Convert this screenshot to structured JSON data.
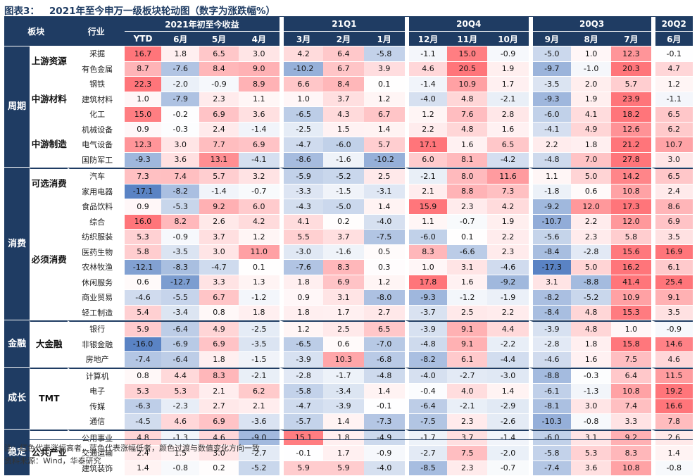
{
  "title": {
    "figure_label": "图表3：",
    "text": "2021年至今申万一级板块轮动图（数字为涨跌幅%）"
  },
  "headers": {
    "sector": "板块",
    "industry": "行业",
    "groups": [
      "2021年初至今收益",
      "21Q1",
      "20Q4",
      "20Q3",
      "20Q2"
    ],
    "months": [
      "YTD",
      "6月",
      "5月",
      "4月",
      "3月",
      "2月",
      "1月",
      "12月",
      "11月",
      "10月",
      "9月",
      "8月",
      "7月",
      "6月"
    ]
  },
  "colors": {
    "header_bg": "#1f3c63",
    "positive_strong": "#f4757a",
    "negative_strong": "#5a83c4",
    "neutral": "#ffffff"
  },
  "sections": [
    {
      "label": "周期",
      "subgroups": [
        {
          "label": "上游资源",
          "rows": [
            {
              "industry": "采掘",
              "values": [
                16.7,
                1.8,
                6.5,
                3.0,
                4.2,
                6.4,
                -5.8,
                -1.1,
                15.0,
                -0.9,
                -5.0,
                1.0,
                12.3,
                -0.1
              ]
            },
            {
              "industry": "有色金属",
              "values": [
                8.7,
                -7.6,
                8.4,
                9.0,
                -10.2,
                6.7,
                3.9,
                4.6,
                20.5,
                1.9,
                -9.7,
                -1.0,
                20.3,
                4.7
              ]
            }
          ]
        },
        {
          "label": "中游材料",
          "rows": [
            {
              "industry": "钢铁",
              "values": [
                22.3,
                -2.0,
                -0.9,
                8.9,
                6.6,
                8.4,
                0.1,
                -1.4,
                10.9,
                1.7,
                -3.5,
                2.0,
                5.7,
                1.2
              ]
            },
            {
              "industry": "建筑材料",
              "values": [
                1.0,
                -7.9,
                2.3,
                1.1,
                1.0,
                3.7,
                1.2,
                -4.0,
                4.8,
                -2.1,
                -9.3,
                1.9,
                23.9,
                -1.1
              ]
            },
            {
              "industry": "化工",
              "values": [
                15.0,
                -0.2,
                6.9,
                3.6,
                -6.5,
                4.3,
                6.7,
                1.2,
                7.6,
                2.8,
                -6.0,
                4.1,
                18.2,
                6.5
              ]
            }
          ]
        },
        {
          "label": "中游制造",
          "rows": [
            {
              "industry": "机械设备",
              "values": [
                0.9,
                -0.3,
                2.4,
                -1.4,
                -2.5,
                1.5,
                1.4,
                2.2,
                4.8,
                1.6,
                -4.1,
                4.9,
                12.6,
                6.2
              ]
            },
            {
              "industry": "电气设备",
              "values": [
                12.3,
                3.0,
                7.7,
                6.9,
                -4.7,
                -6.0,
                5.7,
                17.1,
                1.6,
                6.5,
                2.2,
                1.8,
                21.2,
                10.7
              ]
            },
            {
              "industry": "国防军工",
              "values": [
                -9.3,
                3.6,
                13.1,
                -4.1,
                -8.6,
                -1.6,
                -10.2,
                6.0,
                8.1,
                -4.2,
                -4.8,
                7.0,
                27.8,
                3.0
              ]
            }
          ]
        }
      ]
    },
    {
      "label": "消费",
      "subgroups": [
        {
          "label": "可选消费",
          "rows": [
            {
              "industry": "汽车",
              "values": [
                7.3,
                7.4,
                5.7,
                3.2,
                -5.9,
                -5.2,
                2.5,
                -2.1,
                8.0,
                11.6,
                1.1,
                5.0,
                14.2,
                6.5
              ]
            },
            {
              "industry": "家用电器",
              "values": [
                -17.1,
                -8.2,
                -1.4,
                -0.7,
                -3.3,
                -1.5,
                -3.1,
                2.1,
                8.8,
                7.3,
                -1.8,
                0.6,
                10.8,
                2.4
              ]
            }
          ]
        },
        {
          "label": "必须消费",
          "rows": [
            {
              "industry": "食品饮料",
              "values": [
                0.9,
                -5.3,
                9.2,
                6.0,
                -4.3,
                -5.0,
                1.4,
                15.9,
                2.3,
                4.2,
                -9.2,
                12.0,
                17.3,
                8.6
              ]
            },
            {
              "industry": "综合",
              "values": [
                16.0,
                8.2,
                2.6,
                4.2,
                4.1,
                0.2,
                -4.0,
                1.1,
                -0.7,
                1.9,
                -10.7,
                2.2,
                12.0,
                6.9
              ]
            },
            {
              "industry": "纺织服装",
              "values": [
                5.3,
                -0.9,
                3.7,
                1.2,
                5.5,
                3.7,
                -7.5,
                -6.0,
                0.1,
                2.2,
                -5.6,
                2.3,
                5.8,
                3.5
              ]
            },
            {
              "industry": "医药生物",
              "values": [
                5.8,
                -3.5,
                3.0,
                11.0,
                -3.0,
                -1.6,
                0.5,
                8.3,
                -6.6,
                2.3,
                -8.4,
                -2.8,
                15.6,
                16.9
              ]
            },
            {
              "industry": "农林牧渔",
              "values": [
                -12.1,
                -8.3,
                -4.7,
                0.1,
                -7.6,
                8.3,
                0.3,
                1.0,
                3.1,
                -4.6,
                -17.3,
                5.0,
                16.2,
                6.1
              ]
            },
            {
              "industry": "休闲服务",
              "values": [
                0.6,
                -12.7,
                3.3,
                1.3,
                1.8,
                6.9,
                1.2,
                17.8,
                1.6,
                -9.2,
                3.1,
                -8.8,
                41.4,
                25.4
              ]
            },
            {
              "industry": "商业贸易",
              "values": [
                -4.6,
                -5.5,
                6.7,
                -1.2,
                0.9,
                3.1,
                -8.0,
                -9.3,
                -1.2,
                -1.9,
                -8.2,
                -5.2,
                10.9,
                9.1
              ]
            },
            {
              "industry": "轻工制造",
              "values": [
                5.4,
                -3.4,
                0.8,
                1.8,
                1.8,
                1.7,
                2.7,
                -3.7,
                2.5,
                2.2,
                -8.4,
                4.8,
                15.3,
                3.5
              ]
            }
          ]
        }
      ]
    },
    {
      "label": "金融",
      "subgroups": [
        {
          "label": "大金融",
          "rows": [
            {
              "industry": "银行",
              "values": [
                5.9,
                -6.4,
                4.9,
                -2.5,
                1.2,
                2.5,
                6.5,
                -3.9,
                9.1,
                4.4,
                -3.9,
                4.8,
                1.0,
                -0.9
              ]
            },
            {
              "industry": "非银金融",
              "values": [
                -16.0,
                -6.9,
                6.9,
                -3.5,
                -6.5,
                0.6,
                -7.0,
                -4.8,
                9.1,
                -2.2,
                -2.8,
                1.8,
                15.8,
                14.6
              ]
            },
            {
              "industry": "房地产",
              "values": [
                -7.4,
                -6.4,
                1.8,
                -1.5,
                -3.9,
                10.3,
                -6.8,
                -8.2,
                6.1,
                -4.4,
                -4.6,
                1.6,
                7.5,
                4.6
              ]
            }
          ]
        }
      ]
    },
    {
      "label": "成长",
      "subgroups": [
        {
          "label": "TMT",
          "rows": [
            {
              "industry": "计算机",
              "values": [
                0.8,
                4.4,
                8.3,
                -2.1,
                -2.8,
                -1.7,
                -4.8,
                -4.0,
                -2.7,
                -3.0,
                -8.8,
                -0.3,
                6.4,
                11.5
              ]
            },
            {
              "industry": "电子",
              "values": [
                5.3,
                5.3,
                2.1,
                6.2,
                -5.8,
                -3.4,
                1.4,
                -0.4,
                4.0,
                1.4,
                -6.1,
                -1.3,
                10.8,
                19.2
              ]
            },
            {
              "industry": "传媒",
              "values": [
                -6.3,
                -2.3,
                2.7,
                2.1,
                -4.7,
                -3.9,
                -0.1,
                -6.4,
                -2.1,
                -2.9,
                -8.1,
                3.0,
                7.4,
                16.6
              ]
            },
            {
              "industry": "通信",
              "values": [
                -4.5,
                4.6,
                6.9,
                -3.6,
                -5.7,
                1.4,
                -7.3,
                -7.5,
                2.3,
                -2.6,
                -10.3,
                -0.8,
                3.3,
                7.8
              ]
            }
          ]
        }
      ]
    },
    {
      "label": "稳定",
      "subgroups": [
        {
          "label": "公共产业",
          "rows": [
            {
              "industry": "公用事业",
              "values": [
                4.8,
                -1.3,
                4.6,
                -9.0,
                15.1,
                1.8,
                -4.9,
                -1.7,
                3.7,
                -1.4,
                -6.0,
                3.1,
                9.2,
                2.6
              ]
            },
            {
              "industry": "交通运输",
              "values": [
                2.4,
                1.5,
                3.0,
                -2.7,
                -0.1,
                1.7,
                -0.9,
                -2.7,
                7.5,
                -2.0,
                -5.8,
                5.3,
                8.3,
                1.4
              ]
            },
            {
              "industry": "建筑装饰",
              "values": [
                1.4,
                -0.8,
                0.2,
                -5.2,
                5.9,
                5.9,
                -4.0,
                -8.5,
                2.3,
                -0.7,
                -7.4,
                3.6,
                10.8,
                -0.8
              ]
            }
          ]
        }
      ]
    }
  ],
  "notes": {
    "note": "注：红色代表涨幅高者，蓝色代表涨幅低者，颜色过渡与数值变化方向一致",
    "source": "资料来源：Wind，华泰研究"
  }
}
